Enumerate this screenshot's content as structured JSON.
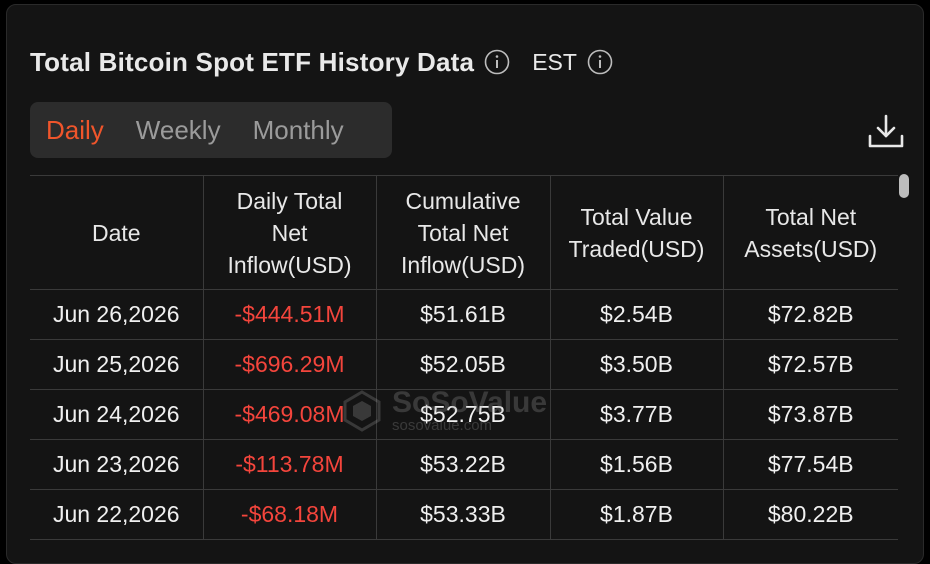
{
  "header": {
    "title": "Total Bitcoin Spot ETF History Data",
    "timezone": "EST"
  },
  "tabs": [
    {
      "label": "Daily",
      "active": true
    },
    {
      "label": "Weekly",
      "active": false
    },
    {
      "label": "Monthly",
      "active": false
    }
  ],
  "table": {
    "columns": [
      "Date",
      "Daily Total Net Inflow(USD)",
      "Cumulative Total Net Inflow(USD)",
      "Total Value Traded(USD)",
      "Total Net Assets(USD)"
    ],
    "rows": [
      [
        "Jun 26,2026",
        "-$444.51M",
        "$51.61B",
        "$2.54B",
        "$72.82B"
      ],
      [
        "Jun 25,2026",
        "-$696.29M",
        "$52.05B",
        "$3.50B",
        "$72.57B"
      ],
      [
        "Jun 24,2026",
        "-$469.08M",
        "$52.75B",
        "$3.77B",
        "$73.87B"
      ],
      [
        "Jun 23,2026",
        "-$113.78M",
        "$53.22B",
        "$1.56B",
        "$77.54B"
      ],
      [
        "Jun 22,2026",
        "-$68.18M",
        "$53.33B",
        "$1.87B",
        "$80.22B"
      ]
    ]
  },
  "watermark": {
    "brand": "SoSoValue",
    "url": "sosovalue.com"
  },
  "colors": {
    "accent": "#f0552b",
    "negative": "#f4453c",
    "background": "#141414",
    "tab_bg": "#2c2c2c"
  },
  "icons": {
    "title_info": "info-icon",
    "timezone_info": "info-icon",
    "download": "download-icon"
  }
}
